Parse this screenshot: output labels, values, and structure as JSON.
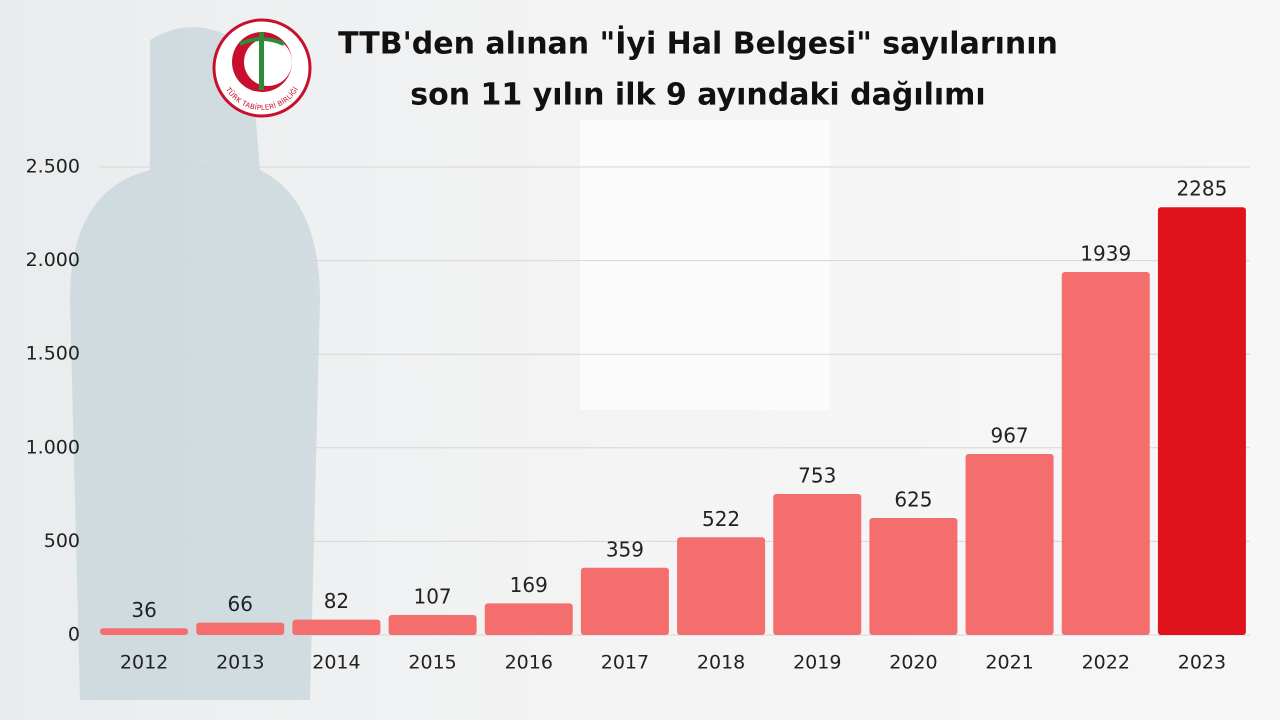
{
  "chart_data": {
    "type": "bar",
    "title": [
      "TTB'den alınan \"İyi Hal Belgesi\" sayılarının",
      "son 11 yılın ilk 9 ayındaki dağılımı"
    ],
    "logo_text": "TÜRK TABİPLERİ BİRLİĞİ",
    "categories": [
      "2012",
      "2013",
      "2014",
      "2015",
      "2016",
      "2017",
      "2018",
      "2019",
      "2020",
      "2021",
      "2022",
      "2023"
    ],
    "values": [
      36,
      66,
      82,
      107,
      169,
      359,
      522,
      753,
      625,
      967,
      1939,
      2285
    ],
    "colors": [
      "#f46e6e",
      "#f46e6e",
      "#f46e6e",
      "#f46e6e",
      "#f46e6e",
      "#f46e6e",
      "#f46e6e",
      "#f46e6e",
      "#f46e6e",
      "#f46e6e",
      "#f46e6e",
      "#e0121b"
    ],
    "ylim": [
      0,
      2500
    ],
    "yticks": [
      0,
      500,
      {
        "value": 1000,
        "label": "1.000"
      },
      {
        "value": 1500,
        "label": "1.500"
      },
      {
        "value": 2000,
        "label": "2.000"
      },
      {
        "value": 2500,
        "label": "2.500"
      }
    ],
    "grid": true
  }
}
